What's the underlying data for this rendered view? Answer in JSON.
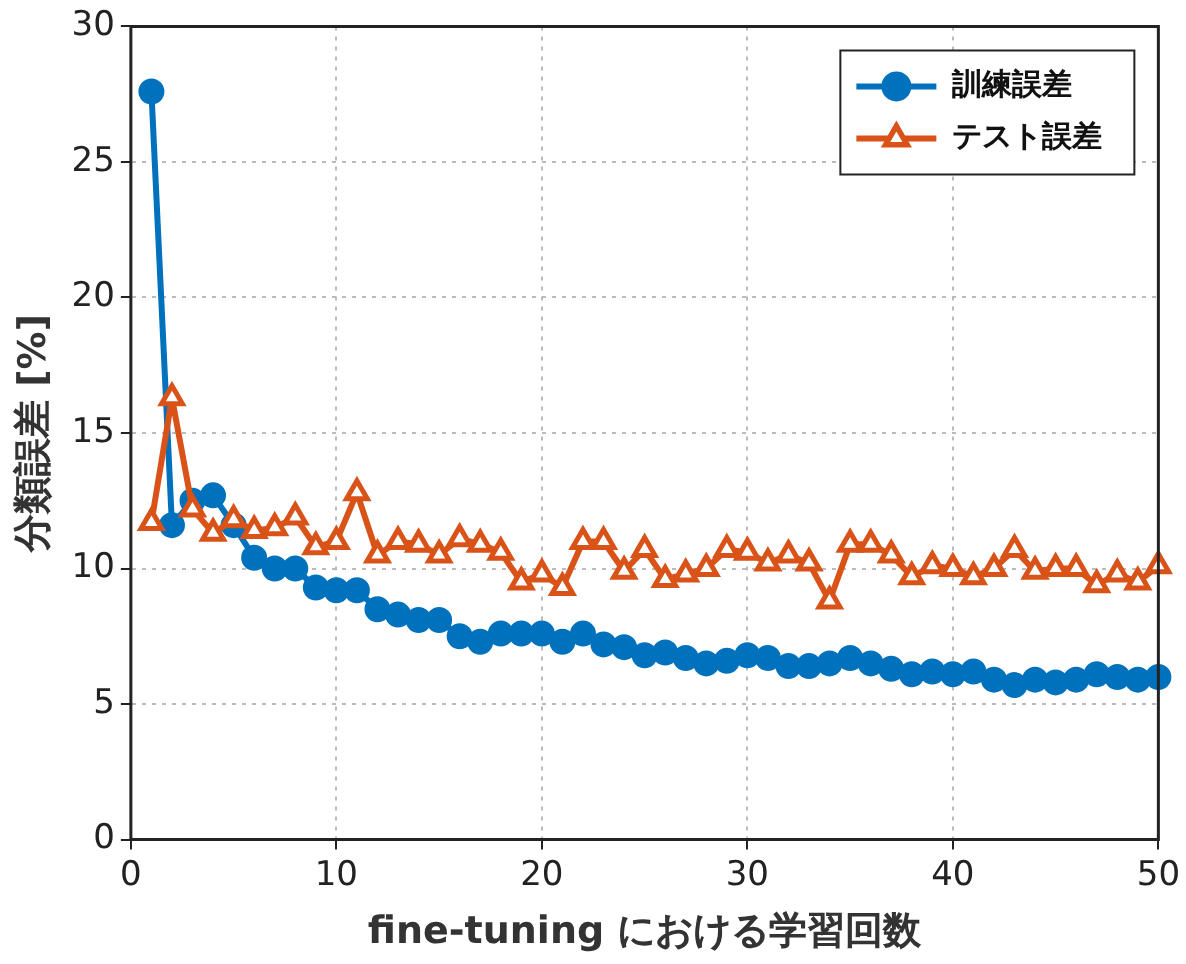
{
  "chart_data": {
    "type": "line",
    "xlabel": "fine-tuning における学習回数",
    "ylabel": "分類誤差 [%]",
    "x": [
      1,
      2,
      3,
      4,
      5,
      6,
      7,
      8,
      9,
      10,
      11,
      12,
      13,
      14,
      15,
      16,
      17,
      18,
      19,
      20,
      21,
      22,
      23,
      24,
      25,
      26,
      27,
      28,
      29,
      30,
      31,
      32,
      33,
      34,
      35,
      36,
      37,
      38,
      39,
      40,
      41,
      42,
      43,
      44,
      45,
      46,
      47,
      48,
      49,
      50
    ],
    "series": [
      {
        "name": "訓練誤差",
        "color": "#0072bd",
        "marker": "circle",
        "values": [
          27.6,
          11.6,
          12.5,
          12.7,
          11.6,
          10.4,
          10.0,
          10.0,
          9.3,
          9.2,
          9.2,
          8.5,
          8.3,
          8.1,
          8.1,
          7.5,
          7.3,
          7.6,
          7.6,
          7.6,
          7.3,
          7.6,
          7.2,
          7.1,
          6.8,
          6.9,
          6.7,
          6.5,
          6.6,
          6.8,
          6.7,
          6.4,
          6.4,
          6.5,
          6.7,
          6.5,
          6.3,
          6.1,
          6.2,
          6.1,
          6.2,
          5.9,
          5.7,
          5.9,
          5.8,
          5.9,
          6.1,
          6.0,
          5.9,
          6.0
        ]
      },
      {
        "name": "テスト誤差",
        "color": "#d95319",
        "marker": "triangle",
        "values": [
          11.7,
          16.3,
          12.2,
          11.3,
          11.8,
          11.4,
          11.5,
          11.9,
          10.8,
          11.0,
          12.8,
          10.5,
          11.0,
          10.9,
          10.5,
          11.1,
          10.9,
          10.6,
          9.5,
          9.8,
          9.3,
          11.0,
          11.0,
          9.9,
          10.7,
          9.6,
          9.8,
          10.0,
          10.7,
          10.6,
          10.2,
          10.5,
          10.2,
          8.8,
          10.9,
          10.9,
          10.5,
          9.7,
          10.1,
          10.0,
          9.7,
          10.0,
          10.7,
          9.9,
          10.0,
          10.0,
          9.4,
          9.8,
          9.5,
          10.1
        ]
      }
    ],
    "xlim": [
      0,
      50
    ],
    "xticks": [
      0,
      10,
      20,
      30,
      40,
      50
    ],
    "ylim": [
      0,
      30
    ],
    "yticks": [
      0,
      5,
      10,
      15,
      20,
      25,
      30
    ],
    "grid": true,
    "legend": "top right",
    "line_style": "solid"
  }
}
